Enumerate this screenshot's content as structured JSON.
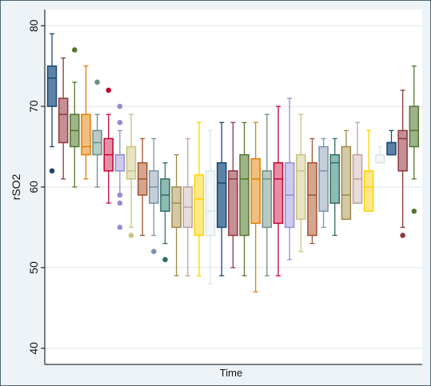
{
  "chart_data": {
    "type": "box",
    "title": "",
    "xlabel": "Time",
    "ylabel": "rSO2",
    "ylim": [
      38,
      82
    ],
    "yticks": [
      40,
      50,
      60,
      70,
      80
    ],
    "grid": true,
    "legend": "none",
    "colors": {
      "plot_bg": "#ffffff",
      "outer_bg": "#eef3f7",
      "grid": "#dde6ec",
      "frame": "#1a3a4a",
      "axis_text": "#111111"
    },
    "boxes": [
      {
        "color": "#1a476f",
        "fill": "#5c82a8",
        "whisker_low": 65,
        "q1": 70,
        "median": 73.5,
        "q3": 75,
        "whisker_high": 79,
        "outliers": [
          62
        ]
      },
      {
        "color": "#90353b",
        "fill": "#c49094",
        "whisker_low": 61,
        "q1": 65.5,
        "median": 69,
        "q3": 71,
        "whisker_high": 76,
        "outliers": []
      },
      {
        "color": "#55752f",
        "fill": "#9db389",
        "whisker_low": 60,
        "q1": 65,
        "median": 67,
        "q3": 69,
        "whisker_high": 73,
        "outliers": [
          77
        ]
      },
      {
        "color": "#e37e00",
        "fill": "#f2bf80",
        "whisker_low": 61,
        "q1": 64,
        "median": 65,
        "q3": 69,
        "whisker_high": 75,
        "outliers": []
      },
      {
        "color": "#6e8e84",
        "fill": "#b8cac4",
        "whisker_low": 60,
        "q1": 64,
        "median": 65.5,
        "q3": 67,
        "whisker_high": 69,
        "outliers": [
          73
        ]
      },
      {
        "color": "#c10534",
        "fill": "#e68fa4",
        "whisker_low": 58,
        "q1": 62,
        "median": 64,
        "q3": 66,
        "whisker_high": 69,
        "outliers": [
          72
        ]
      },
      {
        "color": "#938dd2",
        "fill": "#cdcaee",
        "whisker_low": 59,
        "q1": 62,
        "median": 64,
        "q3": 64,
        "whisker_high": 67,
        "outliers": [
          70,
          68,
          59,
          58,
          55
        ]
      },
      {
        "color": "#cac27e",
        "fill": "#e8e3c2",
        "whisker_low": 55,
        "q1": 61,
        "median": 62,
        "q3": 65,
        "whisker_high": 69,
        "outliers": [
          54
        ]
      },
      {
        "color": "#a0522d",
        "fill": "#d4a690",
        "whisker_low": 54,
        "q1": 59,
        "median": 61,
        "q3": 63,
        "whisker_high": 66,
        "outliers": []
      },
      {
        "color": "#7b92a8",
        "fill": "#c4cfda",
        "whisker_low": 54,
        "q1": 58,
        "median": 60,
        "q3": 62,
        "whisker_high": 66,
        "outliers": [
          52
        ]
      },
      {
        "color": "#2d6d66",
        "fill": "#8fbbb5",
        "whisker_low": 53,
        "q1": 57,
        "median": 59,
        "q3": 61,
        "whisker_high": 63,
        "outliers": [
          51
        ]
      },
      {
        "color": "#9c8847",
        "fill": "#d4c9a6",
        "whisker_low": 49,
        "q1": 55,
        "median": 58,
        "q3": 60,
        "whisker_high": 64,
        "outliers": []
      },
      {
        "color": "#bfa19c",
        "fill": "#e8dcda",
        "whisker_low": 49,
        "q1": 55,
        "median": 57.5,
        "q3": 60,
        "whisker_high": 66,
        "outliers": []
      },
      {
        "color": "#ffd200",
        "fill": "#ffe98a",
        "whisker_low": 49,
        "q1": 54,
        "median": 58.5,
        "q3": 61.5,
        "whisker_high": 68,
        "outliers": []
      },
      {
        "color": "#d9e6eb",
        "fill": "#f3f7f9",
        "whisker_low": 48,
        "q1": 54,
        "median": 57,
        "q3": 62,
        "whisker_high": 67,
        "outliers": []
      },
      {
        "color": "#1a476f",
        "fill": "#5c82a8",
        "whisker_low": 49,
        "q1": 55,
        "median": 60.5,
        "q3": 63,
        "whisker_high": 68,
        "outliers": []
      },
      {
        "color": "#90353b",
        "fill": "#c49094",
        "whisker_low": 50,
        "q1": 54,
        "median": 61,
        "q3": 62,
        "whisker_high": 68,
        "outliers": []
      },
      {
        "color": "#55752f",
        "fill": "#9db389",
        "whisker_low": 49,
        "q1": 54,
        "median": 61,
        "q3": 64,
        "whisker_high": 68,
        "outliers": []
      },
      {
        "color": "#e37e00",
        "fill": "#f2bf80",
        "whisker_low": 47,
        "q1": 55.5,
        "median": 61,
        "q3": 63.5,
        "whisker_high": 68,
        "outliers": []
      },
      {
        "color": "#6e8e84",
        "fill": "#b8cac4",
        "whisker_low": 49,
        "q1": 55,
        "median": 61,
        "q3": 62,
        "whisker_high": 69,
        "outliers": []
      },
      {
        "color": "#c10534",
        "fill": "#e68fa4",
        "whisker_low": 49,
        "q1": 55.5,
        "median": 61,
        "q3": 63,
        "whisker_high": 70,
        "outliers": []
      },
      {
        "color": "#938dd2",
        "fill": "#cdcaee",
        "whisker_low": 51,
        "q1": 55,
        "median": 59,
        "q3": 63,
        "whisker_high": 71,
        "outliers": []
      },
      {
        "color": "#cac27e",
        "fill": "#e8e3c2",
        "whisker_low": 52,
        "q1": 56,
        "median": 62,
        "q3": 64,
        "whisker_high": 69,
        "outliers": []
      },
      {
        "color": "#a0522d",
        "fill": "#d4a690",
        "whisker_low": 53,
        "q1": 54,
        "median": 59,
        "q3": 63,
        "whisker_high": 66,
        "outliers": []
      },
      {
        "color": "#7b92a8",
        "fill": "#c4cfda",
        "whisker_low": 55,
        "q1": 57,
        "median": 62,
        "q3": 65,
        "whisker_high": 66,
        "outliers": []
      },
      {
        "color": "#2d6d66",
        "fill": "#8fbbb5",
        "whisker_low": 54,
        "q1": 58,
        "median": 63,
        "q3": 64,
        "whisker_high": 66,
        "outliers": []
      },
      {
        "color": "#9c8847",
        "fill": "#d4c9a6",
        "whisker_low": 56,
        "q1": 56,
        "median": 59,
        "q3": 65,
        "whisker_high": 67,
        "outliers": []
      },
      {
        "color": "#bfa19c",
        "fill": "#e8dcda",
        "whisker_low": 58,
        "q1": 58,
        "median": 61,
        "q3": 64,
        "whisker_high": 68,
        "outliers": []
      },
      {
        "color": "#ffd200",
        "fill": "#ffe98a",
        "whisker_low": 57,
        "q1": 57,
        "median": 60,
        "q3": 62,
        "whisker_high": 67,
        "outliers": []
      },
      {
        "color": "#d9e6eb",
        "fill": "#f3f7f9",
        "whisker_low": 63,
        "q1": 63,
        "median": 64,
        "q3": 64,
        "whisker_high": 65,
        "outliers": []
      },
      {
        "color": "#1a476f",
        "fill": "#5c82a8",
        "whisker_low": 64,
        "q1": 64,
        "median": 65.5,
        "q3": 65.5,
        "whisker_high": 67,
        "outliers": []
      },
      {
        "color": "#90353b",
        "fill": "#c49094",
        "whisker_low": 55,
        "q1": 62,
        "median": 66,
        "q3": 67,
        "whisker_high": 72,
        "outliers": [
          54
        ]
      },
      {
        "color": "#55752f",
        "fill": "#9db389",
        "whisker_low": 61,
        "q1": 65,
        "median": 67,
        "q3": 70,
        "whisker_high": 75,
        "outliers": [
          57
        ]
      }
    ]
  }
}
